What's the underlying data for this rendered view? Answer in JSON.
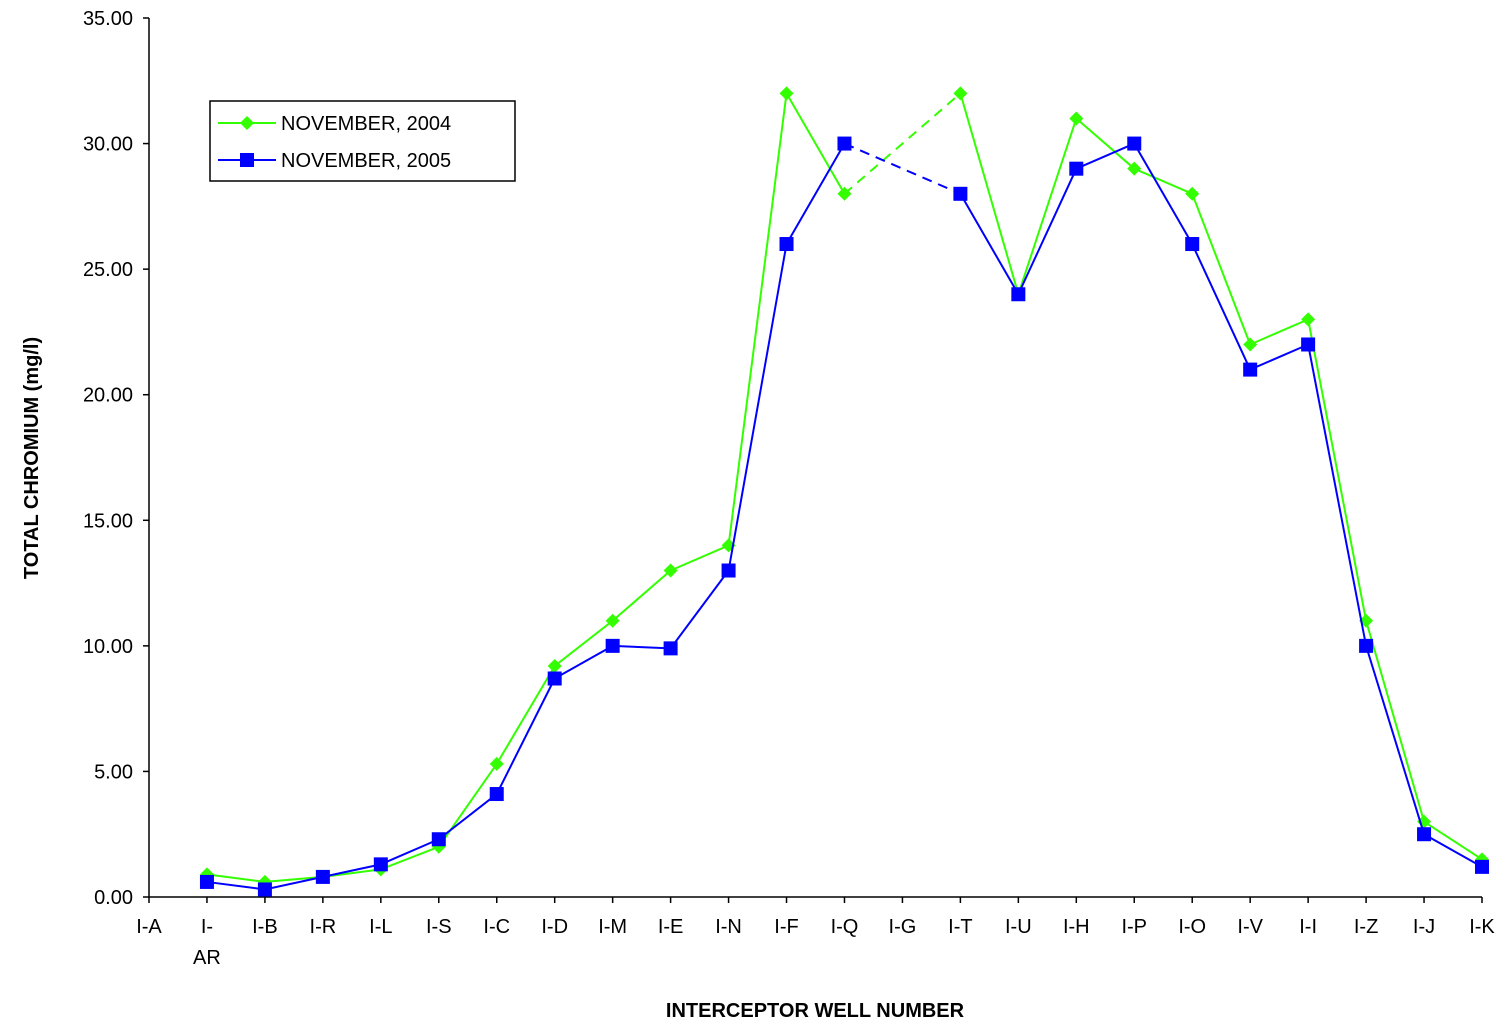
{
  "chart_data": {
    "type": "line",
    "title": "",
    "xlabel": "INTERCEPTOR WELL NUMBER",
    "ylabel": "TOTAL CHROMIUM (mg/l)",
    "ylim": [
      0,
      35
    ],
    "y_ticks": [
      "0.00",
      "5.00",
      "10.00",
      "15.00",
      "20.00",
      "25.00",
      "30.00",
      "35.00"
    ],
    "categories": [
      "I-A",
      "I-AR",
      "I-B",
      "I-R",
      "I-L",
      "I-S",
      "I-C",
      "I-D",
      "I-M",
      "I-E",
      "I-N",
      "I-F",
      "I-Q",
      "I-G",
      "I-T",
      "I-U",
      "I-H",
      "I-P",
      "I-O",
      "I-V",
      "I-I",
      "I-Z",
      "I-J",
      "I-K"
    ],
    "category_labels": [
      [
        "I-A"
      ],
      [
        "I-",
        "AR"
      ],
      [
        "I-B"
      ],
      [
        "I-R"
      ],
      [
        "I-L"
      ],
      [
        "I-S"
      ],
      [
        "I-C"
      ],
      [
        "I-D"
      ],
      [
        "I-M"
      ],
      [
        "I-E"
      ],
      [
        "I-N"
      ],
      [
        "I-F"
      ],
      [
        "I-Q"
      ],
      [
        "I-G"
      ],
      [
        "I-T"
      ],
      [
        "I-U"
      ],
      [
        "I-H"
      ],
      [
        "I-P"
      ],
      [
        "I-O"
      ],
      [
        "I-V"
      ],
      [
        "I-I"
      ],
      [
        "I-Z"
      ],
      [
        "I-J"
      ],
      [
        "I-K"
      ]
    ],
    "grid": false,
    "legend_position": "top-left",
    "series": [
      {
        "name": "NOVEMBER, 2004",
        "color": "#33ff00",
        "marker": "diamond",
        "values": [
          null,
          0.9,
          0.6,
          0.8,
          1.1,
          2.0,
          5.3,
          9.2,
          11.0,
          13.0,
          14.0,
          32.0,
          28.0,
          null,
          32.0,
          24.0,
          31.0,
          29.0,
          28.0,
          22.0,
          23.0,
          11.0,
          3.0,
          1.5
        ]
      },
      {
        "name": "NOVEMBER, 2005",
        "color": "#0000ff",
        "marker": "square",
        "values": [
          null,
          0.6,
          0.3,
          0.8,
          1.3,
          2.3,
          4.1,
          8.7,
          10.0,
          9.9,
          13.0,
          26.0,
          30.0,
          null,
          28.0,
          24.0,
          29.0,
          30.0,
          26.0,
          21.0,
          22.0,
          10.0,
          2.5,
          1.2
        ]
      }
    ]
  }
}
